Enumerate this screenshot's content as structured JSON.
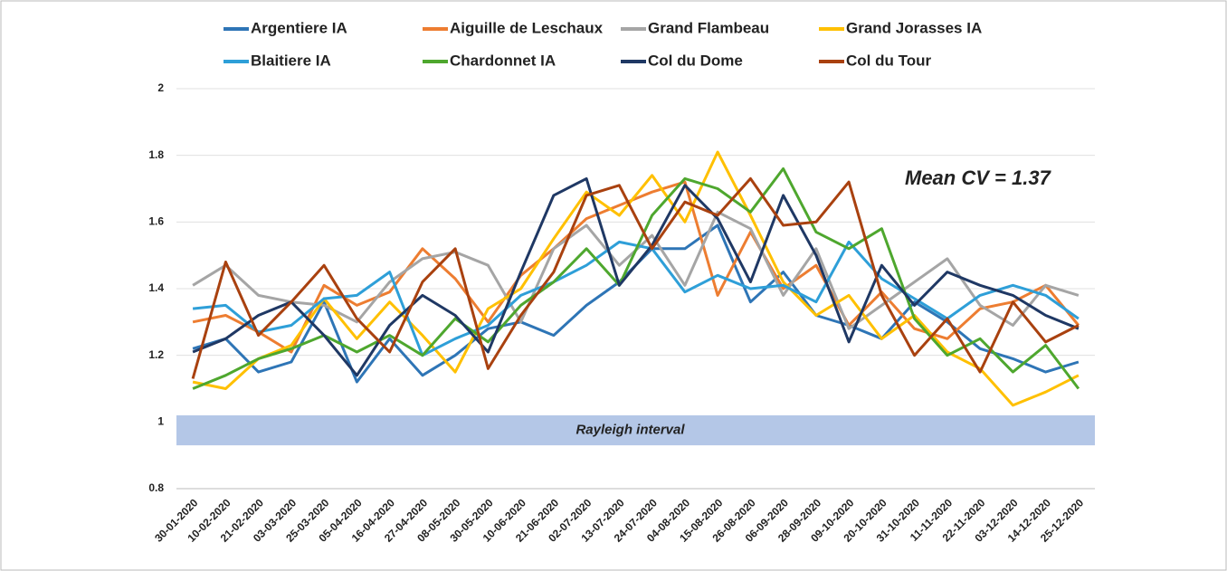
{
  "chart_data": {
    "type": "line",
    "categories": [
      "30-01-2020",
      "10-02-2020",
      "21-02-2020",
      "03-03-2020",
      "25-03-2020",
      "05-04-2020",
      "16-04-2020",
      "27-04-2020",
      "08-05-2020",
      "30-05-2020",
      "10-06-2020",
      "21-06-2020",
      "02-07-2020",
      "13-07-2020",
      "24-07-2020",
      "04-08-2020",
      "15-08-2020",
      "26-08-2020",
      "06-09-2020",
      "28-09-2020",
      "09-10-2020",
      "20-10-2020",
      "31-10-2020",
      "11-11-2020",
      "22-11-2020",
      "03-12-2020",
      "14-12-2020",
      "25-12-2020"
    ],
    "series": [
      {
        "name": "Argentiere IA",
        "color": "#2e75b6",
        "values": [
          1.22,
          1.25,
          1.15,
          1.18,
          1.36,
          1.12,
          1.25,
          1.14,
          1.2,
          1.28,
          1.3,
          1.26,
          1.35,
          1.42,
          1.52,
          1.52,
          1.59,
          1.36,
          1.45,
          1.32,
          1.29,
          1.25,
          1.36,
          1.3,
          1.22,
          1.19,
          1.15,
          1.18
        ]
      },
      {
        "name": "Aiguille de Leschaux",
        "color": "#ed7d31",
        "values": [
          1.3,
          1.32,
          1.27,
          1.21,
          1.41,
          1.35,
          1.39,
          1.52,
          1.43,
          1.3,
          1.44,
          1.52,
          1.61,
          1.65,
          1.69,
          1.72,
          1.38,
          1.57,
          1.4,
          1.47,
          1.29,
          1.39,
          1.28,
          1.25,
          1.34,
          1.36,
          1.41,
          1.29
        ]
      },
      {
        "name": "Grand Flambeau",
        "color": "#a5a5a5",
        "values": [
          1.41,
          1.47,
          1.38,
          1.36,
          1.35,
          1.3,
          1.42,
          1.49,
          1.51,
          1.47,
          1.3,
          1.52,
          1.59,
          1.47,
          1.56,
          1.41,
          1.63,
          1.58,
          1.38,
          1.52,
          1.28,
          1.35,
          1.42,
          1.49,
          1.35,
          1.29,
          1.41,
          1.38
        ]
      },
      {
        "name": "Grand Jorasses IA",
        "color": "#ffc000",
        "values": [
          1.12,
          1.1,
          1.19,
          1.23,
          1.37,
          1.25,
          1.36,
          1.26,
          1.15,
          1.34,
          1.4,
          1.55,
          1.69,
          1.62,
          1.74,
          1.6,
          1.81,
          1.62,
          1.42,
          1.32,
          1.38,
          1.25,
          1.32,
          1.21,
          1.16,
          1.05,
          1.09,
          1.14
        ]
      },
      {
        "name": "Blaitiere IA",
        "color": "#2e9fd8",
        "values": [
          1.34,
          1.35,
          1.27,
          1.29,
          1.37,
          1.38,
          1.45,
          1.2,
          1.25,
          1.29,
          1.38,
          1.42,
          1.47,
          1.54,
          1.52,
          1.39,
          1.44,
          1.4,
          1.41,
          1.36,
          1.54,
          1.43,
          1.37,
          1.31,
          1.38,
          1.41,
          1.38,
          1.31
        ]
      },
      {
        "name": "Chardonnet IA",
        "color": "#4ea72e",
        "values": [
          1.1,
          1.14,
          1.19,
          1.22,
          1.26,
          1.21,
          1.26,
          1.2,
          1.31,
          1.24,
          1.35,
          1.42,
          1.52,
          1.41,
          1.62,
          1.73,
          1.7,
          1.63,
          1.76,
          1.57,
          1.52,
          1.58,
          1.31,
          1.2,
          1.25,
          1.15,
          1.23,
          1.1
        ]
      },
      {
        "name": "Col du Dome",
        "color": "#1f3864",
        "values": [
          1.21,
          1.25,
          1.32,
          1.36,
          1.26,
          1.14,
          1.29,
          1.38,
          1.32,
          1.21,
          1.45,
          1.68,
          1.73,
          1.41,
          1.53,
          1.71,
          1.61,
          1.42,
          1.68,
          1.5,
          1.24,
          1.47,
          1.35,
          1.45,
          1.41,
          1.38,
          1.32,
          1.28
        ]
      },
      {
        "name": "Col du Tour",
        "color": "#a9410f",
        "values": [
          1.13,
          1.48,
          1.26,
          1.36,
          1.47,
          1.31,
          1.21,
          1.42,
          1.52,
          1.16,
          1.32,
          1.45,
          1.68,
          1.71,
          1.52,
          1.66,
          1.62,
          1.73,
          1.59,
          1.6,
          1.72,
          1.38,
          1.2,
          1.31,
          1.15,
          1.36,
          1.24,
          1.29
        ]
      }
    ],
    "ylim": [
      0.8,
      2
    ],
    "yticks": [
      0.8,
      1,
      1.2,
      1.4,
      1.6,
      1.8,
      2
    ],
    "grid": true,
    "legend": "top",
    "band": {
      "label": "Rayleigh interval",
      "range": [
        0.93,
        1.02
      ],
      "color": "#b4c7e7"
    },
    "annotation": "Mean CV = 1.37"
  }
}
